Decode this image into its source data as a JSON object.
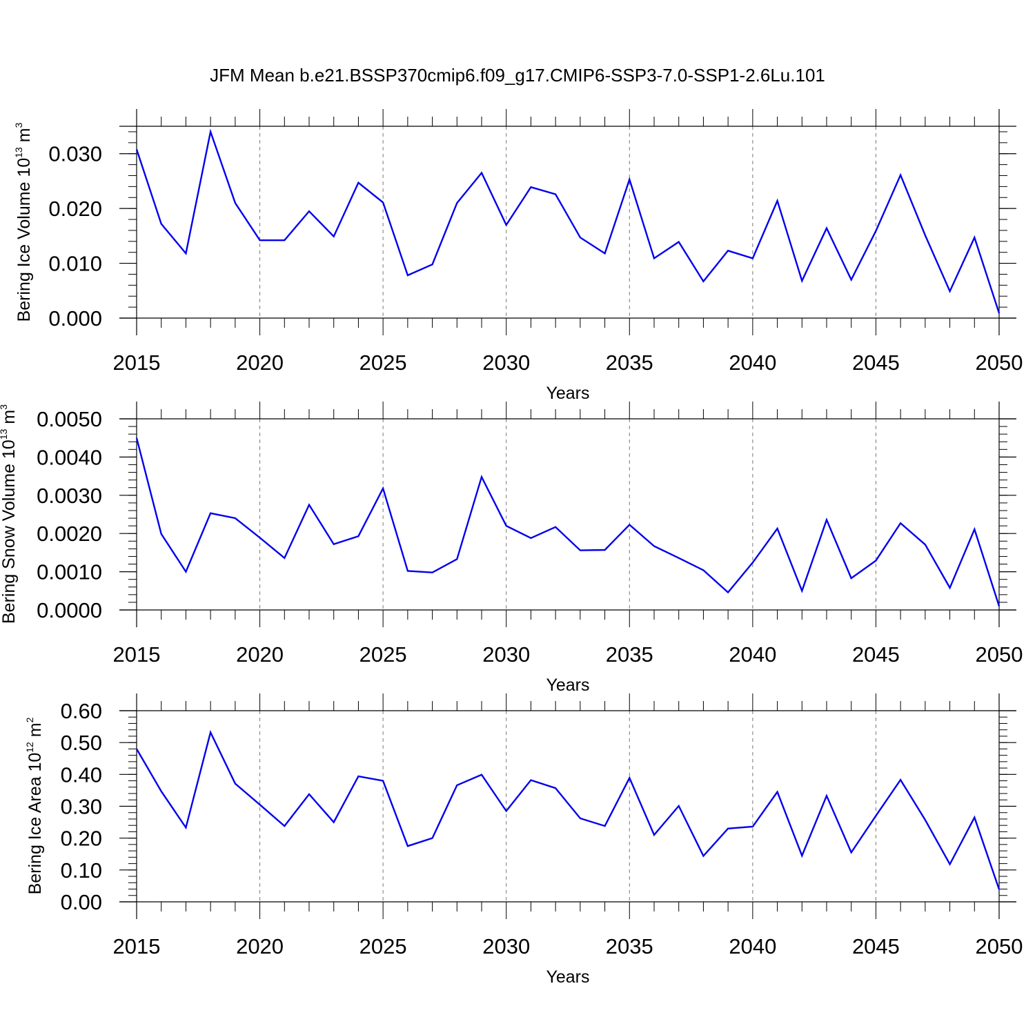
{
  "title": "JFM Mean b.e21.BSSP370cmip6.f09_g17.CMIP6-SSP3-7.0-SSP1-2.6Lu.101",
  "colors": {
    "series": "#0000ee",
    "axis": "#000000",
    "grid": "#777777"
  },
  "chart_data": [
    {
      "type": "line",
      "ylabel": "Bering Ice Volume 10",
      "ylabel_exp": "13",
      "ylabel_unit": " m",
      "ylabel_unit_exp": "3",
      "xlabel": "Years",
      "xlim": [
        2015,
        2050
      ],
      "ylim": [
        0,
        0.035
      ],
      "yticks": [
        0,
        0.01,
        0.02,
        0.03
      ],
      "ytick_labels": [
        "0.000",
        "0.010",
        "0.020",
        "0.030"
      ],
      "xticks": [
        2015,
        2020,
        2025,
        2030,
        2035,
        2040,
        2045,
        2050
      ],
      "xtick_labels": [
        "2015",
        "2020",
        "2025",
        "2030",
        "2035",
        "2040",
        "2045",
        "2050"
      ],
      "grid": "vertical dashed at major x ticks",
      "x": [
        2015,
        2016,
        2017,
        2018,
        2019,
        2020,
        2021,
        2022,
        2023,
        2024,
        2025,
        2026,
        2027,
        2028,
        2029,
        2030,
        2031,
        2032,
        2033,
        2034,
        2035,
        2036,
        2037,
        2038,
        2039,
        2040,
        2041,
        2042,
        2043,
        2044,
        2045,
        2046,
        2047,
        2048,
        2049,
        2050
      ],
      "y": [
        0.0308,
        0.0172,
        0.0118,
        0.034,
        0.021,
        0.0142,
        0.0142,
        0.0195,
        0.0149,
        0.0247,
        0.0211,
        0.0078,
        0.0098,
        0.021,
        0.0265,
        0.017,
        0.0239,
        0.0226,
        0.0147,
        0.0118,
        0.0253,
        0.0109,
        0.0139,
        0.0067,
        0.0123,
        0.0109,
        0.0214,
        0.0068,
        0.0164,
        0.007,
        0.0159,
        0.0261,
        0.0151,
        0.0049,
        0.0147,
        0.0009
      ]
    },
    {
      "type": "line",
      "ylabel": "Bering Snow Volume 10",
      "ylabel_exp": "13",
      "ylabel_unit": " m",
      "ylabel_unit_exp": "3",
      "xlabel": "Years",
      "xlim": [
        2015,
        2050
      ],
      "ylim": [
        0,
        0.005
      ],
      "yticks": [
        0,
        0.001,
        0.002,
        0.003,
        0.004,
        0.005
      ],
      "ytick_labels": [
        "0.0000",
        "0.0010",
        "0.0020",
        "0.0030",
        "0.0040",
        "0.0050"
      ],
      "xticks": [
        2015,
        2020,
        2025,
        2030,
        2035,
        2040,
        2045,
        2050
      ],
      "xtick_labels": [
        "2015",
        "2020",
        "2025",
        "2030",
        "2035",
        "2040",
        "2045",
        "2050"
      ],
      "grid": "vertical dashed at major x ticks",
      "x": [
        2015,
        2016,
        2017,
        2018,
        2019,
        2020,
        2021,
        2022,
        2023,
        2024,
        2025,
        2026,
        2027,
        2028,
        2029,
        2030,
        2031,
        2032,
        2033,
        2034,
        2035,
        2036,
        2037,
        2038,
        2039,
        2040,
        2041,
        2042,
        2043,
        2044,
        2045,
        2046,
        2047,
        2048,
        2049,
        2050
      ],
      "y": [
        0.0045,
        0.00199,
        0.001,
        0.00253,
        0.0024,
        0.00189,
        0.00136,
        0.00275,
        0.00172,
        0.00193,
        0.00318,
        0.00102,
        0.00098,
        0.00133,
        0.00348,
        0.0022,
        0.00188,
        0.00217,
        0.00156,
        0.00157,
        0.00223,
        0.00167,
        0.00136,
        0.00104,
        0.00046,
        0.00124,
        0.00213,
        0.0005,
        0.00236,
        0.00083,
        0.00129,
        0.00227,
        0.00171,
        0.00058,
        0.00211,
        0.0001
      ]
    },
    {
      "type": "line",
      "ylabel": "Bering Ice Area 10",
      "ylabel_exp": "12",
      "ylabel_unit": " m",
      "ylabel_unit_exp": "2",
      "xlabel": "Years",
      "xlim": [
        2015,
        2050
      ],
      "ylim": [
        0,
        0.6
      ],
      "yticks": [
        0,
        0.1,
        0.2,
        0.3,
        0.4,
        0.5,
        0.6
      ],
      "ytick_labels": [
        "0.00",
        "0.10",
        "0.20",
        "0.30",
        "0.40",
        "0.50",
        "0.60"
      ],
      "xticks": [
        2015,
        2020,
        2025,
        2030,
        2035,
        2040,
        2045,
        2050
      ],
      "xtick_labels": [
        "2015",
        "2020",
        "2025",
        "2030",
        "2035",
        "2040",
        "2045",
        "2050"
      ],
      "grid": "vertical dashed at major x ticks",
      "x": [
        2015,
        2016,
        2017,
        2018,
        2019,
        2020,
        2021,
        2022,
        2023,
        2024,
        2025,
        2026,
        2027,
        2028,
        2029,
        2030,
        2031,
        2032,
        2033,
        2034,
        2035,
        2036,
        2037,
        2038,
        2039,
        2040,
        2041,
        2042,
        2043,
        2044,
        2045,
        2046,
        2047,
        2048,
        2049,
        2050
      ],
      "y": [
        0.48,
        0.347,
        0.233,
        0.532,
        0.371,
        0.305,
        0.238,
        0.338,
        0.25,
        0.394,
        0.38,
        0.175,
        0.2,
        0.366,
        0.399,
        0.285,
        0.382,
        0.357,
        0.262,
        0.238,
        0.389,
        0.21,
        0.301,
        0.144,
        0.23,
        0.236,
        0.345,
        0.145,
        0.333,
        0.155,
        0.27,
        0.383,
        0.257,
        0.118,
        0.265,
        0.039
      ]
    }
  ]
}
